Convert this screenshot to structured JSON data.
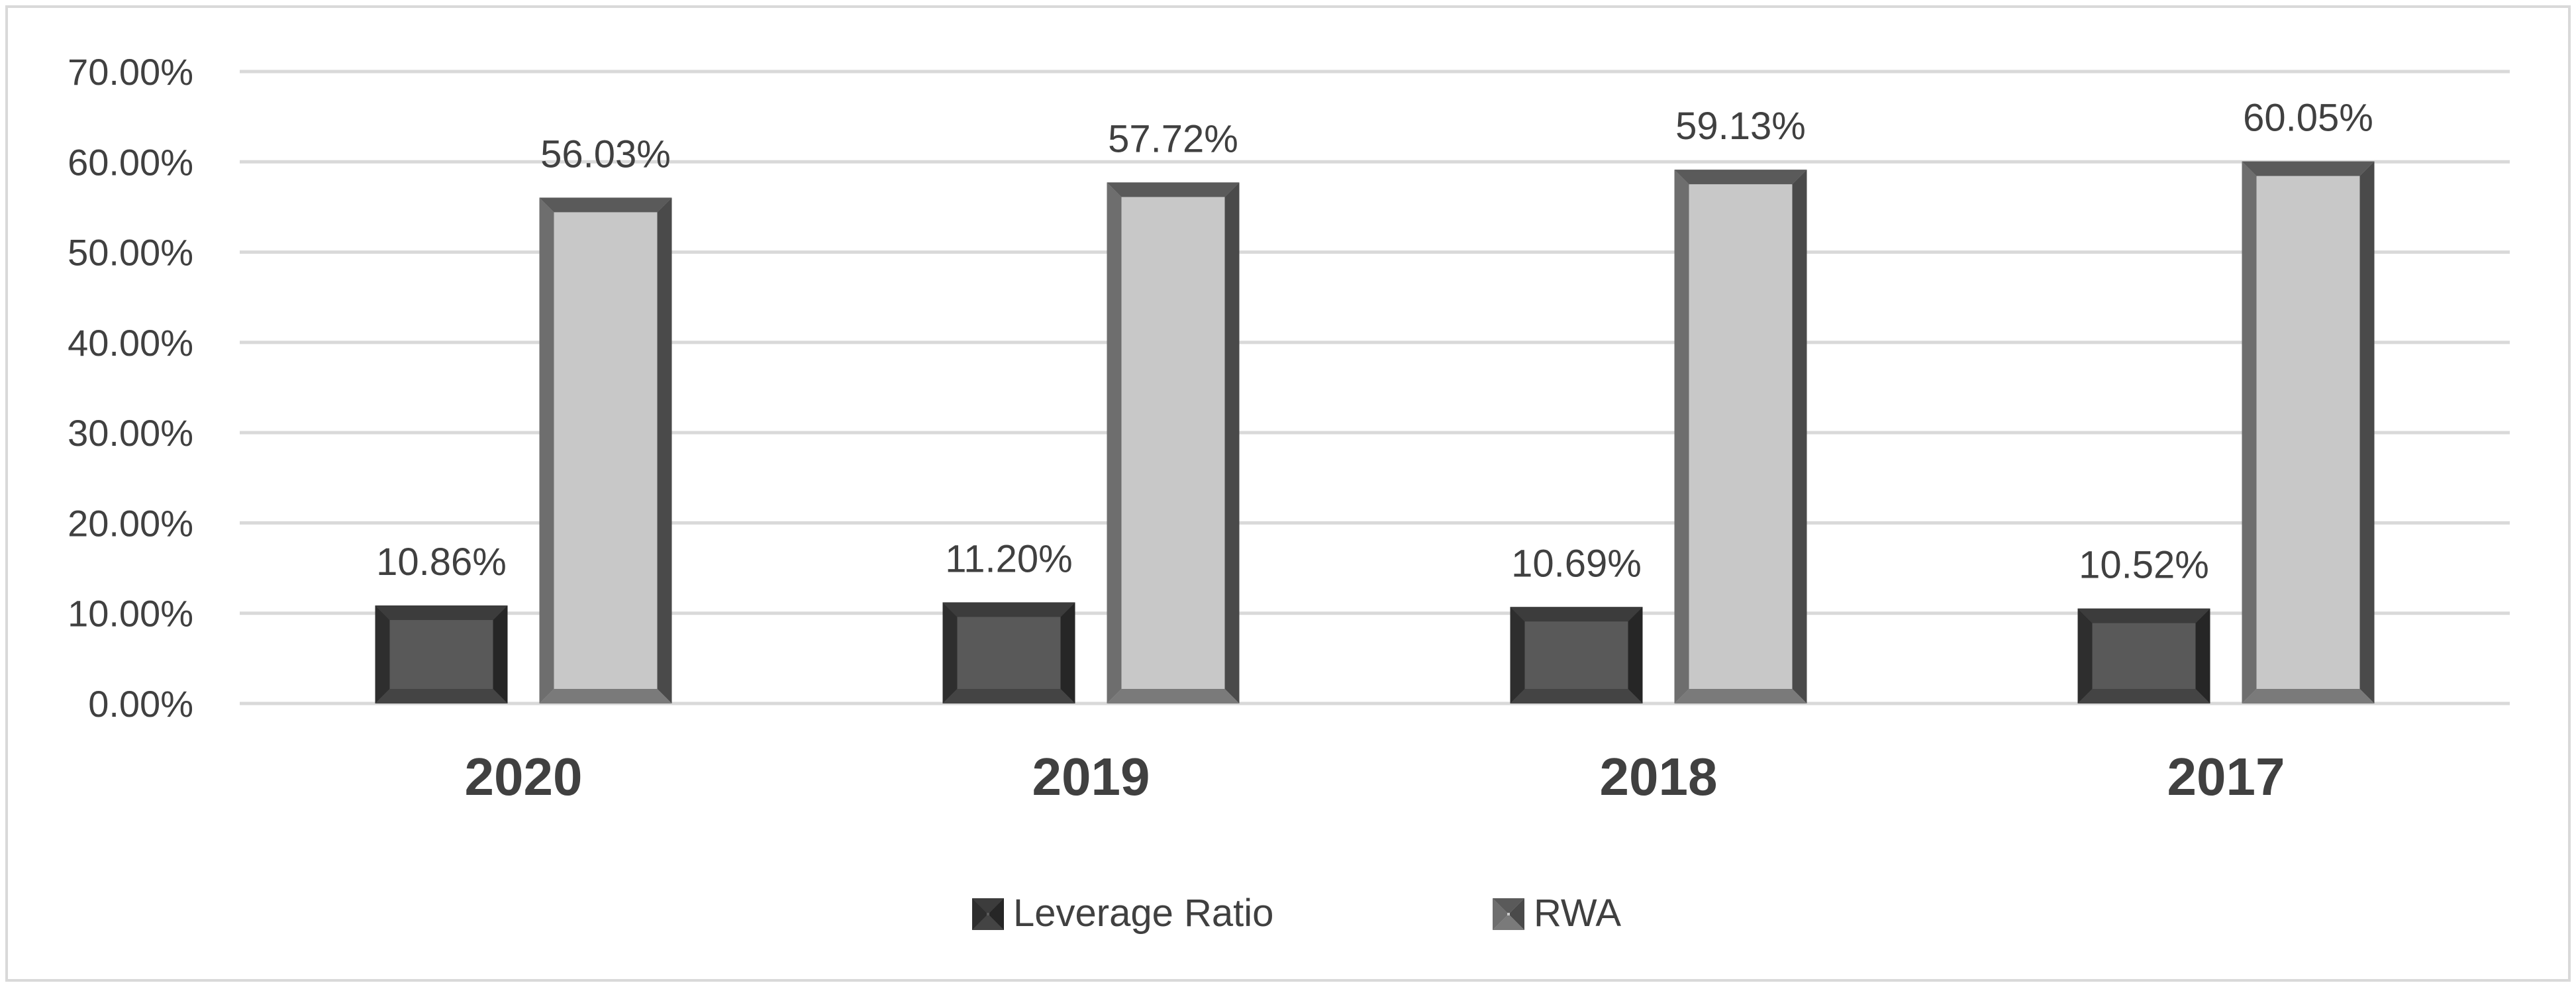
{
  "chart_data": {
    "type": "bar",
    "categories": [
      "2020",
      "2019",
      "2018",
      "2017"
    ],
    "series": [
      {
        "name": "Leverage Ratio",
        "values": [
          10.86,
          11.2,
          10.69,
          10.52
        ],
        "labels": [
          "10.86%",
          "11.20%",
          "10.69%",
          "10.52%"
        ],
        "color": "#595959"
      },
      {
        "name": "RWA",
        "values": [
          56.03,
          57.72,
          59.13,
          60.05
        ],
        "labels": [
          "56.03%",
          "57.72%",
          "59.13%",
          "60.05%"
        ],
        "color": "#c8c8c8"
      }
    ],
    "y_ticks": [
      "0.00%",
      "10.00%",
      "20.00%",
      "30.00%",
      "40.00%",
      "50.00%",
      "60.00%",
      "70.00%"
    ],
    "ylim": [
      0,
      70
    ],
    "grid": true,
    "title": "",
    "xlabel": "",
    "ylabel": "",
    "legend_position": "bottom-center"
  }
}
